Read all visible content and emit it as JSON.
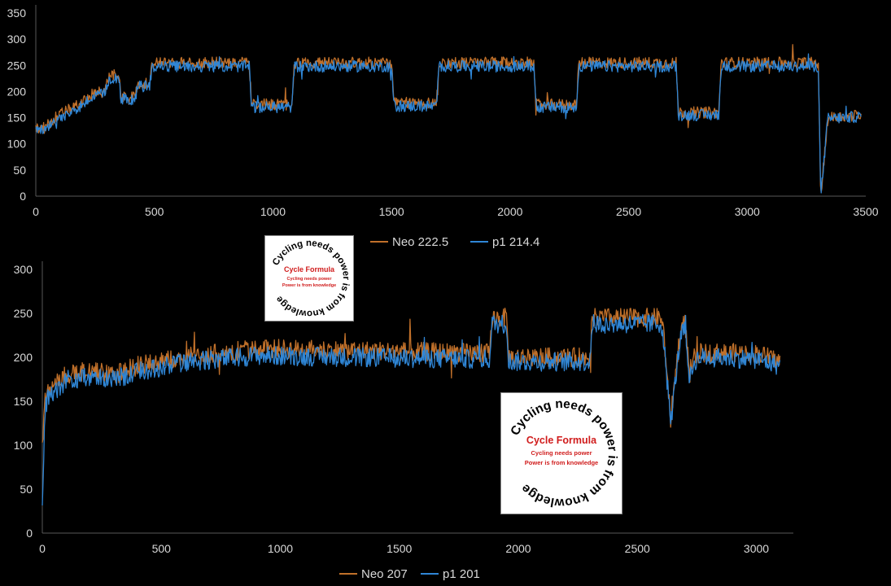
{
  "colors": {
    "neo": "#c0702a",
    "p1": "#2f86d6",
    "background": "#000000"
  },
  "chart_data": [
    {
      "type": "line",
      "title": "",
      "xlabel": "",
      "ylabel": "",
      "xlim": [
        0,
        3500
      ],
      "ylim": [
        0,
        350
      ],
      "xticks": [
        "0",
        "500",
        "1000",
        "1500",
        "2000",
        "2500",
        "3000",
        "3500"
      ],
      "yticks": [
        "0",
        "50",
        "100",
        "150",
        "200",
        "250",
        "300",
        "350"
      ],
      "grid": false,
      "legend": "bottom",
      "series": [
        {
          "name": "Neo 222.5",
          "x": [
            0,
            40,
            80,
            120,
            160,
            200,
            240,
            290,
            310,
            350,
            360,
            420,
            430,
            480,
            490,
            900,
            910,
            1080,
            1090,
            1500,
            1510,
            1690,
            1700,
            2100,
            2110,
            2280,
            2290,
            2700,
            2710,
            2880,
            2890,
            3300,
            3310,
            3340,
            3480
          ],
          "values": [
            130,
            130,
            150,
            160,
            170,
            180,
            195,
            200,
            230,
            232,
            190,
            190,
            215,
            215,
            255,
            255,
            175,
            175,
            255,
            255,
            178,
            178,
            255,
            255,
            175,
            175,
            255,
            255,
            160,
            160,
            255,
            255,
            0,
            150,
            155
          ]
        },
        {
          "name": "p1 214.4",
          "x": [
            0,
            40,
            80,
            120,
            160,
            200,
            240,
            290,
            310,
            350,
            360,
            420,
            430,
            480,
            490,
            900,
            910,
            1080,
            1090,
            1500,
            1510,
            1690,
            1700,
            2100,
            2110,
            2280,
            2290,
            2700,
            2710,
            2880,
            2890,
            3300,
            3310,
            3340,
            3480
          ],
          "values": [
            125,
            125,
            145,
            155,
            165,
            175,
            190,
            195,
            225,
            228,
            185,
            185,
            210,
            210,
            248,
            248,
            170,
            170,
            248,
            248,
            172,
            172,
            248,
            248,
            170,
            170,
            248,
            248,
            155,
            155,
            248,
            248,
            0,
            148,
            152
          ]
        }
      ]
    },
    {
      "type": "line",
      "title": "",
      "xlabel": "",
      "ylabel": "",
      "xlim": [
        0,
        3200
      ],
      "ylim": [
        0,
        300
      ],
      "xticks": [
        "0",
        "500",
        "1000",
        "1500",
        "2000",
        "2500",
        "3000"
      ],
      "yticks": [
        "0",
        "50",
        "100",
        "150",
        "200",
        "250",
        "300"
      ],
      "grid": false,
      "legend": "bottom",
      "series": [
        {
          "name": "Neo 207",
          "x": [
            0,
            10,
            30,
            100,
            200,
            300,
            400,
            600,
            900,
            1300,
            1800,
            1880,
            1890,
            1950,
            1960,
            2300,
            2310,
            2600,
            2610,
            2640,
            2680,
            2700,
            2720,
            2740,
            2760,
            3000,
            3100
          ],
          "values": [
            100,
            150,
            165,
            180,
            185,
            180,
            190,
            200,
            210,
            208,
            205,
            205,
            245,
            245,
            200,
            200,
            245,
            245,
            230,
            130,
            230,
            240,
            180,
            200,
            205,
            205,
            195
          ]
        },
        {
          "name": "p1 201",
          "x": [
            0,
            10,
            30,
            100,
            200,
            300,
            400,
            600,
            900,
            1300,
            1800,
            1880,
            1890,
            1950,
            1960,
            2300,
            2310,
            2600,
            2610,
            2640,
            2680,
            2700,
            2720,
            2740,
            2760,
            3000,
            3100
          ],
          "values": [
            30,
            140,
            158,
            172,
            178,
            175,
            183,
            194,
            202,
            200,
            198,
            198,
            238,
            238,
            195,
            195,
            238,
            238,
            222,
            125,
            222,
            232,
            175,
            195,
            200,
            198,
            190
          ]
        }
      ]
    }
  ],
  "logos": [
    {
      "ring_text": "Cycling needs power is from knowledge",
      "title": "Cycle Formula",
      "line1": "Cycling needs power",
      "line2": "Power is from knowledge"
    },
    {
      "ring_text": "Cycling needs power is from knowledge",
      "title": "Cycle Formula",
      "line1": "Cycling needs power",
      "line2": "Power is from knowledge"
    }
  ]
}
